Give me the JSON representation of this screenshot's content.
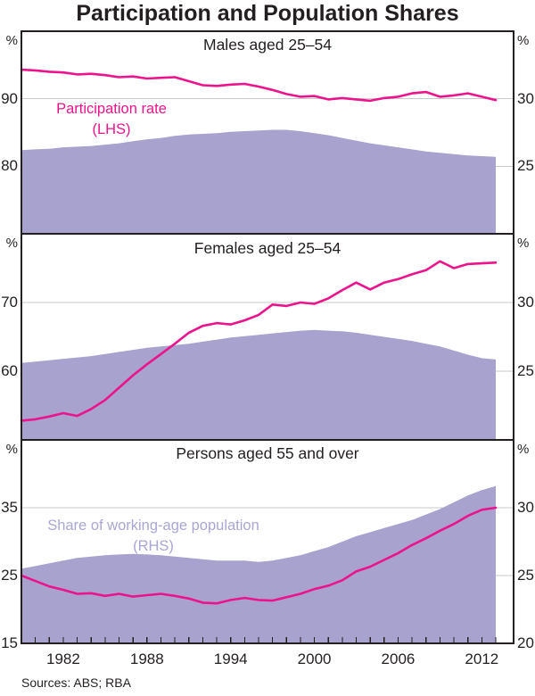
{
  "page_title": "Participation and Population Shares",
  "sources_note": "Sources: ABS; RBA",
  "colors": {
    "participation_line": "#ec148c",
    "share_area": "#a7a2ce",
    "share_legend_text": "#aaa6d4",
    "gridline": "#c9c9c9",
    "frame": "#231f20",
    "text": "#231f20"
  },
  "x_axis": {
    "start_year": 1979,
    "end_year": 2013,
    "tick_start": 1980,
    "tick_end": 2013,
    "tick_interval": 1,
    "label_years": [
      1982,
      1988,
      1994,
      2000,
      2006,
      2012
    ]
  },
  "chart_data": [
    {
      "type": "line+area",
      "panel_title": "Males aged 25–54",
      "left_axis": {
        "unit": "%",
        "min": 70,
        "max": 100,
        "gridlines": [
          90,
          80
        ],
        "labels": [
          90,
          80
        ]
      },
      "right_axis": {
        "unit": "%",
        "min": 20,
        "max": 35,
        "labels": [
          30,
          25
        ]
      },
      "legend": {
        "line1": "Participation rate",
        "line2": "(LHS)",
        "color_key": "participation_line"
      },
      "series": [
        {
          "name": "Participation rate (LHS)",
          "type": "line",
          "axis": "left",
          "values": [
            94.3,
            94.2,
            94.0,
            93.9,
            93.6,
            93.7,
            93.5,
            93.2,
            93.3,
            93.0,
            93.1,
            93.2,
            92.6,
            92.0,
            91.9,
            92.1,
            92.2,
            91.8,
            91.3,
            90.7,
            90.3,
            90.4,
            89.9,
            90.1,
            89.9,
            89.7,
            90.1,
            90.3,
            90.8,
            91.0,
            90.3,
            90.5,
            90.8,
            90.3,
            89.8
          ]
        },
        {
          "name": "Share of working-age population (RHS)",
          "type": "area",
          "axis": "right",
          "values": [
            26.2,
            26.25,
            26.3,
            26.4,
            26.45,
            26.5,
            26.6,
            26.7,
            26.85,
            27.0,
            27.1,
            27.25,
            27.35,
            27.4,
            27.45,
            27.55,
            27.6,
            27.65,
            27.7,
            27.7,
            27.6,
            27.45,
            27.3,
            27.1,
            26.9,
            26.7,
            26.55,
            26.4,
            26.25,
            26.1,
            26.0,
            25.9,
            25.8,
            25.75,
            25.7
          ]
        }
      ]
    },
    {
      "type": "line+area",
      "panel_title": "Females aged 25–54",
      "left_axis": {
        "unit": "%",
        "min": 50,
        "max": 80,
        "gridlines": [
          70,
          60
        ],
        "labels": [
          70,
          60
        ]
      },
      "right_axis": {
        "unit": "%",
        "min": 20,
        "max": 35,
        "labels": [
          30,
          25
        ]
      },
      "series": [
        {
          "name": "Participation rate (LHS)",
          "type": "line",
          "axis": "left",
          "values": [
            52.8,
            53.0,
            53.4,
            53.9,
            53.5,
            54.5,
            55.8,
            57.6,
            59.4,
            61.0,
            62.5,
            64.0,
            65.6,
            66.6,
            67.0,
            66.8,
            67.4,
            68.2,
            69.7,
            69.5,
            70.0,
            69.8,
            70.6,
            71.8,
            72.9,
            71.9,
            72.9,
            73.4,
            74.1,
            74.7,
            76.0,
            75.0,
            75.6,
            75.7,
            75.8
          ]
        },
        {
          "name": "Share of working-age population (RHS)",
          "type": "area",
          "axis": "right",
          "values": [
            25.6,
            25.7,
            25.8,
            25.9,
            26.0,
            26.1,
            26.25,
            26.4,
            26.55,
            26.7,
            26.8,
            26.9,
            27.0,
            27.15,
            27.3,
            27.45,
            27.55,
            27.65,
            27.75,
            27.85,
            27.95,
            28.0,
            27.95,
            27.9,
            27.8,
            27.65,
            27.5,
            27.35,
            27.2,
            27.0,
            26.8,
            26.5,
            26.2,
            25.95,
            25.85
          ]
        }
      ]
    },
    {
      "type": "line+area",
      "panel_title": "Persons aged 55 and over",
      "left_axis": {
        "unit": "%",
        "min": 15,
        "max": 45,
        "gridlines": [
          35,
          25
        ],
        "labels": [
          35,
          25,
          15
        ]
      },
      "right_axis": {
        "unit": "%",
        "min": 20,
        "max": 35,
        "labels": [
          30,
          25,
          20
        ]
      },
      "legend": {
        "line1": "Share of working-age population",
        "line2": "(RHS)",
        "color_key": "share_legend_text"
      },
      "series": [
        {
          "name": "Participation rate (LHS)",
          "type": "line",
          "axis": "left",
          "values": [
            25.0,
            24.2,
            23.4,
            22.9,
            22.3,
            22.4,
            22.0,
            22.3,
            21.9,
            22.1,
            22.3,
            22.0,
            21.6,
            21.0,
            20.9,
            21.4,
            21.7,
            21.4,
            21.3,
            21.8,
            22.3,
            23.0,
            23.5,
            24.3,
            25.6,
            26.3,
            27.3,
            28.3,
            29.5,
            30.5,
            31.6,
            32.6,
            33.8,
            34.7,
            35.0
          ]
        },
        {
          "name": "Share of working-age population (RHS)",
          "type": "area",
          "axis": "right",
          "values": [
            25.5,
            25.7,
            25.9,
            26.1,
            26.3,
            26.4,
            26.5,
            26.55,
            26.6,
            26.55,
            26.5,
            26.4,
            26.3,
            26.2,
            26.1,
            26.1,
            26.1,
            26.0,
            26.1,
            26.3,
            26.5,
            26.8,
            27.1,
            27.5,
            27.9,
            28.2,
            28.5,
            28.8,
            29.1,
            29.5,
            29.9,
            30.4,
            30.9,
            31.3,
            31.6
          ]
        }
      ]
    }
  ]
}
